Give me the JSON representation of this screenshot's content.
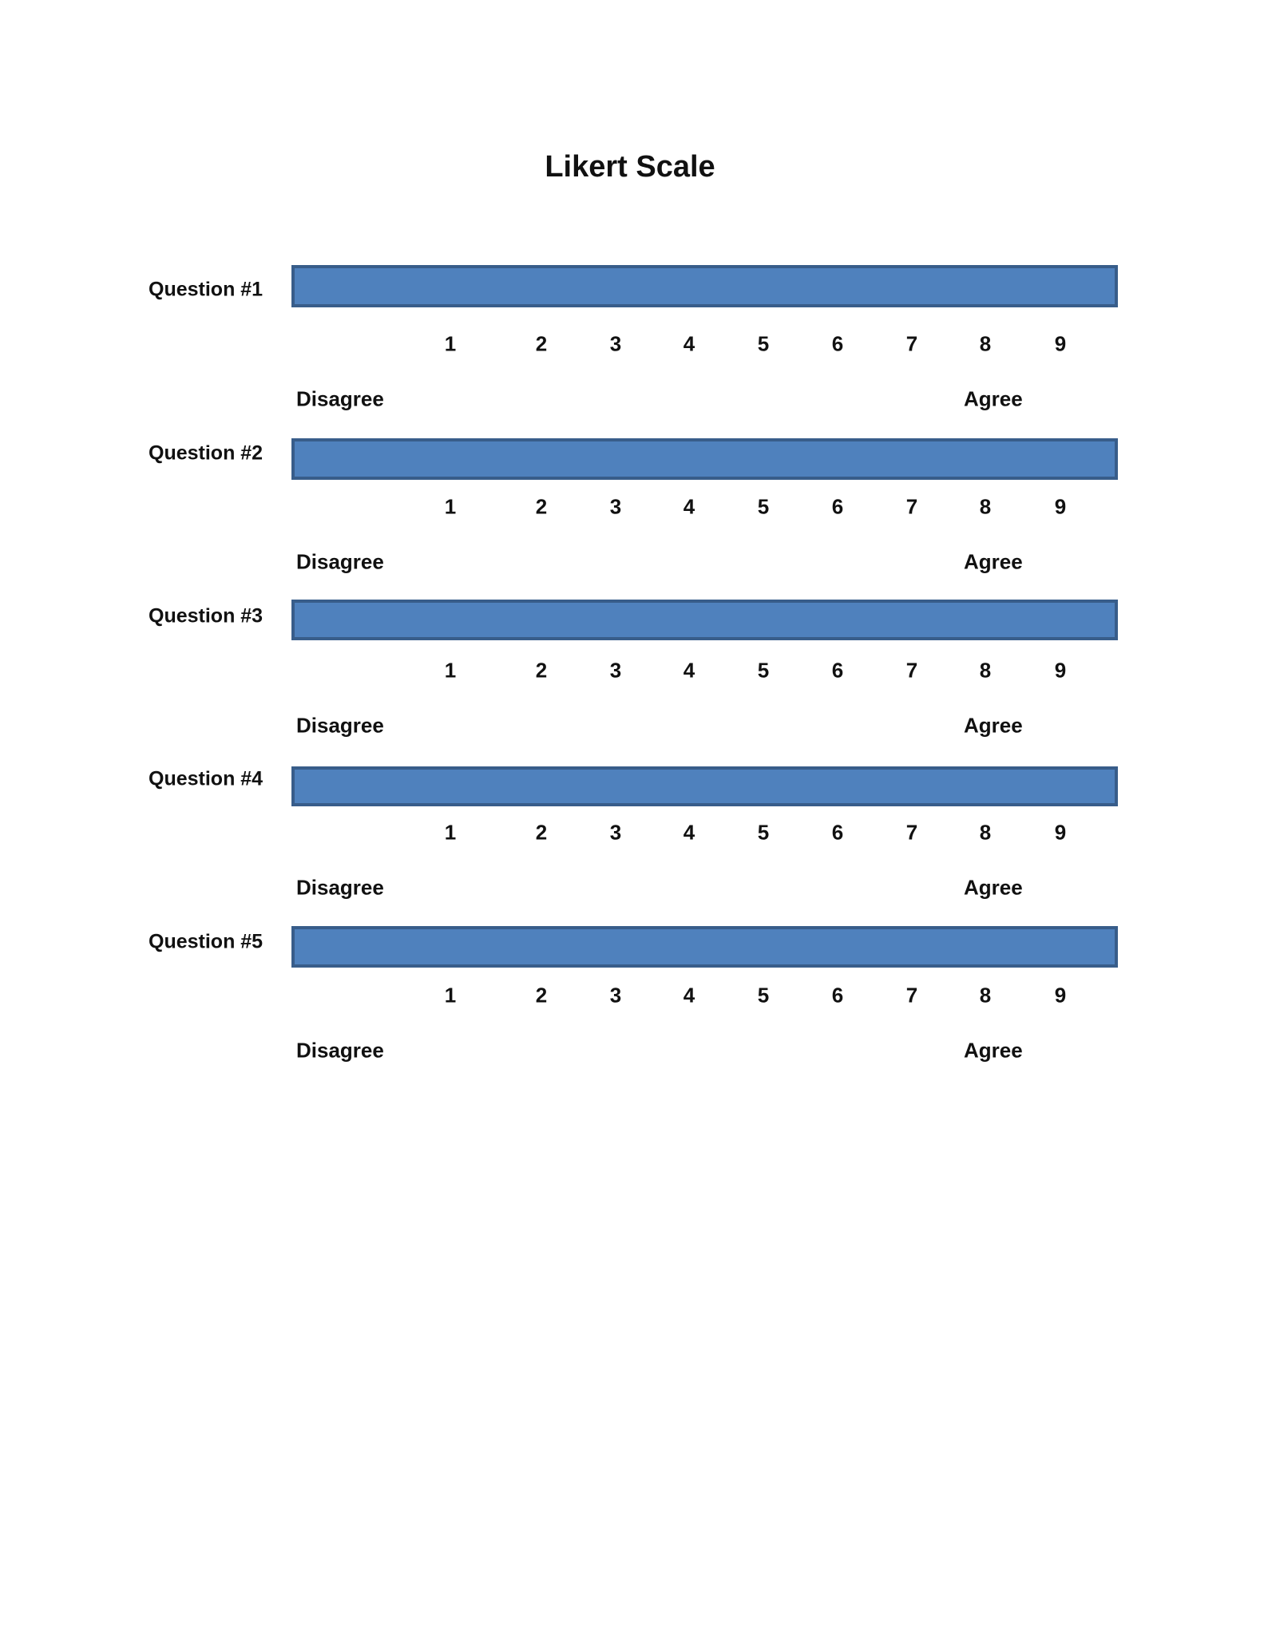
{
  "title": "Likert Scale",
  "colors": {
    "bar_fill": "#4f81bd",
    "bar_border": "#385d8a"
  },
  "scale": [
    "1",
    "2",
    "3",
    "4",
    "5",
    "6",
    "7",
    "8",
    "9"
  ],
  "low_label": "Disagree",
  "high_label": "Agree",
  "questions": [
    {
      "label": "Question #1"
    },
    {
      "label": "Question #2"
    },
    {
      "label": "Question #3"
    },
    {
      "label": "Question #4"
    },
    {
      "label": "Question #5"
    }
  ]
}
